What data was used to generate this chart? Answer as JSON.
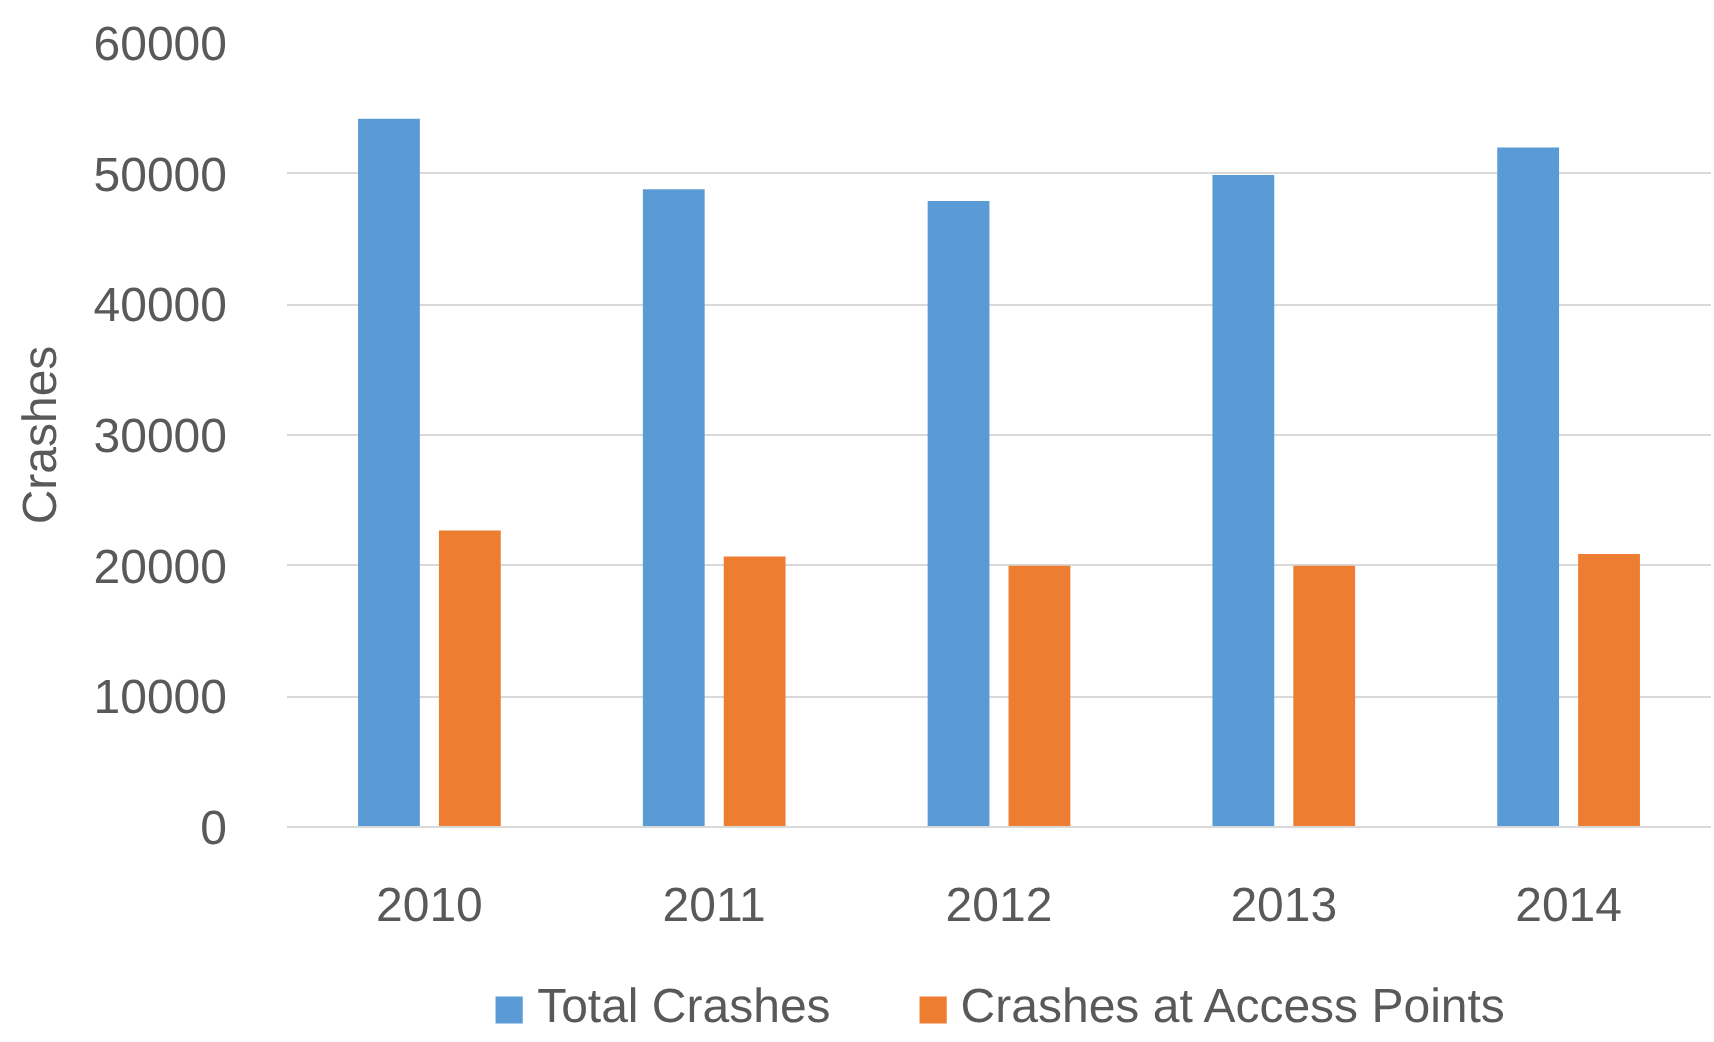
{
  "chart_data": {
    "type": "bar",
    "ylabel": "Crashes",
    "categories": [
      "2010",
      "2011",
      "2012",
      "2013",
      "2014"
    ],
    "series": [
      {
        "name": "Total Crashes",
        "color": "#5b9bd5",
        "values": [
          54200,
          48800,
          47900,
          49900,
          52000
        ]
      },
      {
        "name": "Crashes at Access Points",
        "color": "#ed7d31",
        "values": [
          22700,
          20700,
          20000,
          20000,
          20900
        ]
      }
    ],
    "ylim": [
      0,
      60000
    ],
    "yticks": [
      0,
      10000,
      20000,
      30000,
      40000,
      50000,
      60000
    ],
    "grid": "y",
    "legend": "bottom"
  }
}
